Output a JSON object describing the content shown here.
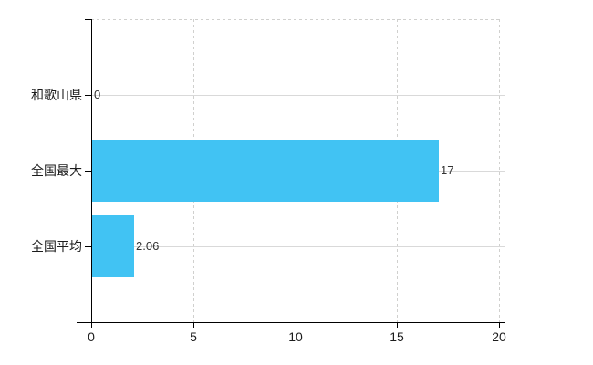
{
  "chart_data": {
    "type": "bar",
    "orientation": "horizontal",
    "title": "",
    "categories": [
      "和歌山県",
      "全国最大",
      "全国平均"
    ],
    "values": [
      0,
      17,
      2.06
    ],
    "value_labels": [
      "0",
      "17",
      "2.06"
    ],
    "xlim": [
      0,
      20
    ],
    "xticks": [
      0,
      5,
      10,
      15,
      20
    ],
    "xtick_labels": [
      "0",
      "5",
      "10",
      "15",
      "20"
    ],
    "legend": [],
    "grid": {
      "vertical": "dashed",
      "horizontal": "solid",
      "top_border": "dashed"
    },
    "colors": {
      "bar": "#41c3f3",
      "axis": "#000000",
      "grid_solid": "#d9d9d9",
      "grid_dashed": "#d0d0ce",
      "category_text": "#1c1c1c",
      "value_text": "#333333"
    }
  }
}
